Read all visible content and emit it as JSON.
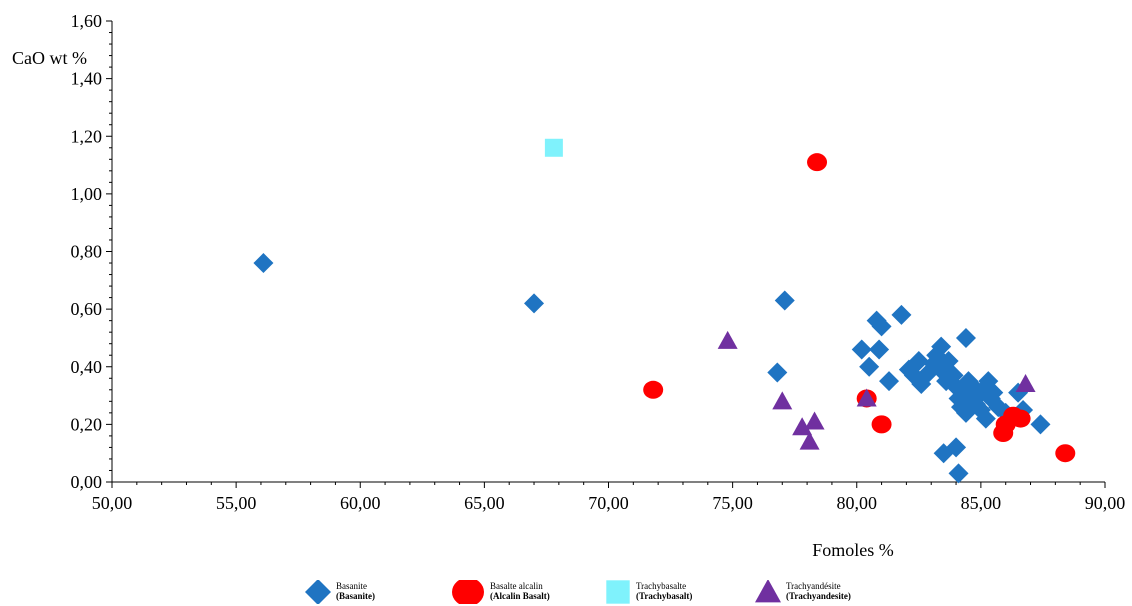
{
  "chart_data": {
    "type": "scatter",
    "title": "",
    "xlabel": "Fomoles %",
    "ylabel": "CaO wt %",
    "xlim": [
      50,
      90
    ],
    "ylim": [
      0,
      1.6
    ],
    "x_ticks": [
      "50,00",
      "55,00",
      "60,00",
      "65,00",
      "70,00",
      "75,00",
      "80,00",
      "85,00",
      "90,00"
    ],
    "y_ticks": [
      "0,00",
      "0,20",
      "0,40",
      "0,60",
      "0,80",
      "1,00",
      "1,20",
      "1,40",
      "1,60"
    ],
    "grid": false,
    "legend_position": "bottom",
    "series": [
      {
        "name": "Basanite",
        "name_en": "(Basanite)",
        "marker": "diamond",
        "color": "#1f74c2",
        "points": [
          [
            56.1,
            0.76
          ],
          [
            67.0,
            0.62
          ],
          [
            77.1,
            0.63
          ],
          [
            76.8,
            0.38
          ],
          [
            80.2,
            0.46
          ],
          [
            80.5,
            0.4
          ],
          [
            80.9,
            0.46
          ],
          [
            80.8,
            0.56
          ],
          [
            81.0,
            0.54
          ],
          [
            81.3,
            0.35
          ],
          [
            81.8,
            0.58
          ],
          [
            82.1,
            0.39
          ],
          [
            82.3,
            0.37
          ],
          [
            82.5,
            0.42
          ],
          [
            82.6,
            0.34
          ],
          [
            82.9,
            0.38
          ],
          [
            83.1,
            0.41
          ],
          [
            83.2,
            0.44
          ],
          [
            83.3,
            0.4
          ],
          [
            83.4,
            0.47
          ],
          [
            83.5,
            0.38
          ],
          [
            83.6,
            0.35
          ],
          [
            83.7,
            0.42
          ],
          [
            83.9,
            0.37
          ],
          [
            84.0,
            0.33
          ],
          [
            84.1,
            0.29
          ],
          [
            84.2,
            0.26
          ],
          [
            84.3,
            0.31
          ],
          [
            84.4,
            0.5
          ],
          [
            84.4,
            0.24
          ],
          [
            84.5,
            0.35
          ],
          [
            84.6,
            0.28
          ],
          [
            84.7,
            0.33
          ],
          [
            84.8,
            0.27
          ],
          [
            84.9,
            0.3
          ],
          [
            85.0,
            0.25
          ],
          [
            85.1,
            0.32
          ],
          [
            85.2,
            0.22
          ],
          [
            85.3,
            0.35
          ],
          [
            85.4,
            0.29
          ],
          [
            85.5,
            0.31
          ],
          [
            85.7,
            0.26
          ],
          [
            83.5,
            0.1
          ],
          [
            84.0,
            0.12
          ],
          [
            84.1,
            0.03
          ],
          [
            86.0,
            0.24
          ],
          [
            86.5,
            0.31
          ],
          [
            86.7,
            0.25
          ],
          [
            87.4,
            0.2
          ]
        ]
      },
      {
        "name": "Basalte alcalin",
        "name_en": "(Alcalin Basalt)",
        "marker": "circle",
        "color": "#ff0000",
        "points": [
          [
            71.8,
            0.32
          ],
          [
            78.4,
            1.11
          ],
          [
            80.4,
            0.29
          ],
          [
            81.0,
            0.2
          ],
          [
            85.9,
            0.17
          ],
          [
            86.0,
            0.2
          ],
          [
            86.3,
            0.23
          ],
          [
            86.6,
            0.22
          ],
          [
            88.4,
            0.1
          ]
        ]
      },
      {
        "name": "Trachybasalte",
        "name_en": "(Trachybasalt)",
        "marker": "square",
        "color": "#7ff2fc",
        "points": [
          [
            67.8,
            1.16
          ]
        ]
      },
      {
        "name": "Trachyandésite",
        "name_en": "(Trachyandesite)",
        "marker": "triangle",
        "color": "#7030a0",
        "points": [
          [
            74.8,
            0.49
          ],
          [
            77.0,
            0.28
          ],
          [
            77.8,
            0.19
          ],
          [
            78.1,
            0.14
          ],
          [
            78.3,
            0.21
          ],
          [
            80.4,
            0.29
          ],
          [
            86.8,
            0.34
          ]
        ]
      }
    ]
  }
}
